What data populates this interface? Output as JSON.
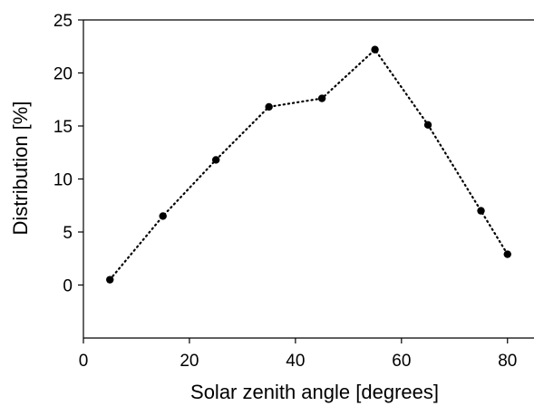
{
  "chart_data": {
    "type": "line",
    "title": "",
    "xlabel": "Solar zenith angle  [degrees]",
    "ylabel": "Distribution  [%]",
    "xlim": [
      0,
      85
    ],
    "ylim": [
      -5,
      25
    ],
    "xticks": [
      0,
      20,
      40,
      60,
      80
    ],
    "yticks": [
      0,
      5,
      10,
      15,
      20,
      25
    ],
    "grid": false,
    "legend": "none",
    "line_style": "dotted",
    "marker": "circle",
    "colors": {
      "line": "#000000",
      "marker": "#000000",
      "axes": "#000000"
    },
    "series": [
      {
        "x": [
          5,
          15,
          25,
          35,
          45,
          55,
          65,
          75,
          80
        ],
        "values": [
          0.5,
          6.5,
          11.8,
          16.8,
          17.6,
          22.2,
          15.1,
          7.0,
          2.9
        ]
      }
    ]
  }
}
